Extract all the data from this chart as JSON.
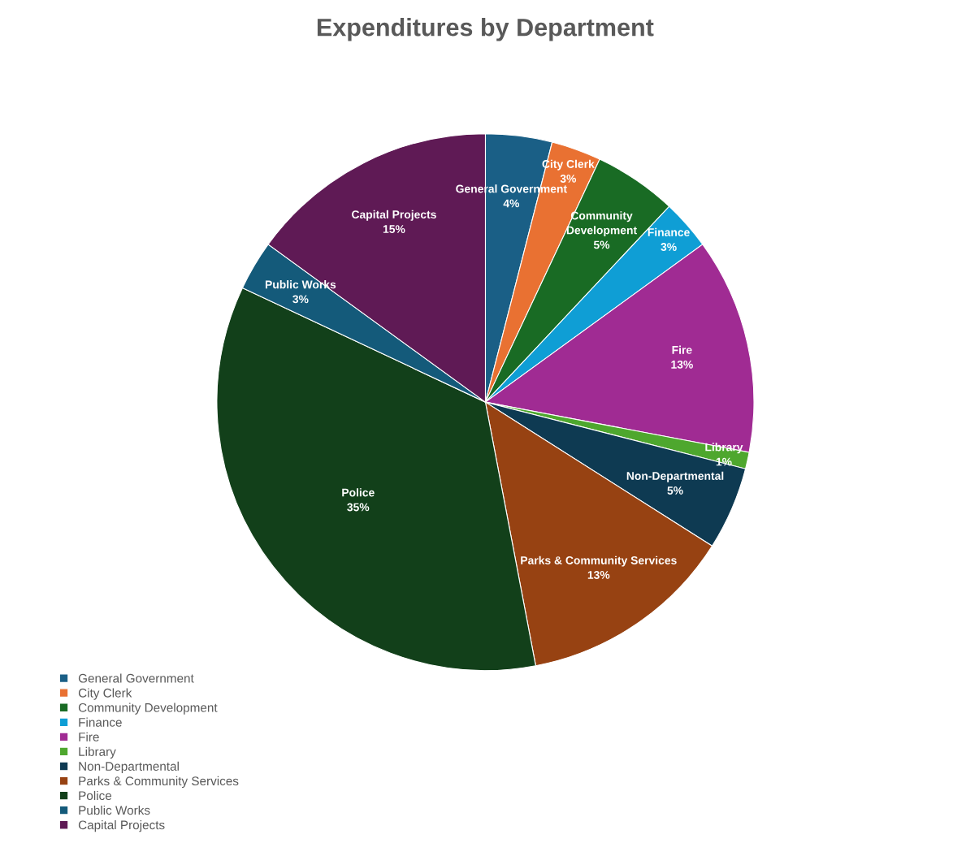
{
  "chart_data": {
    "type": "pie",
    "title": "Expenditures by Department",
    "categories": [
      "General Government",
      "City Clerk",
      "Community Development",
      "Finance",
      "Fire",
      "Library",
      "Non-Departmental",
      "Parks & Community Services",
      "Police",
      "Public Works",
      "Capital Projects"
    ],
    "values": [
      4,
      3,
      5,
      3,
      13,
      1,
      5,
      13,
      35,
      3,
      15
    ],
    "colors": [
      "#1a5f86",
      "#e97132",
      "#196b24",
      "#0f9ed5",
      "#a02b93",
      "#4ea72e",
      "#0e3a52",
      "#974212",
      "#12401a",
      "#145a7a",
      "#5f1a55"
    ],
    "value_labels": [
      "4%",
      "3%",
      "5%",
      "3%",
      "13%",
      "1%",
      "5%",
      "13%",
      "35%",
      "3%",
      "15%"
    ],
    "legend": "bottom left"
  }
}
